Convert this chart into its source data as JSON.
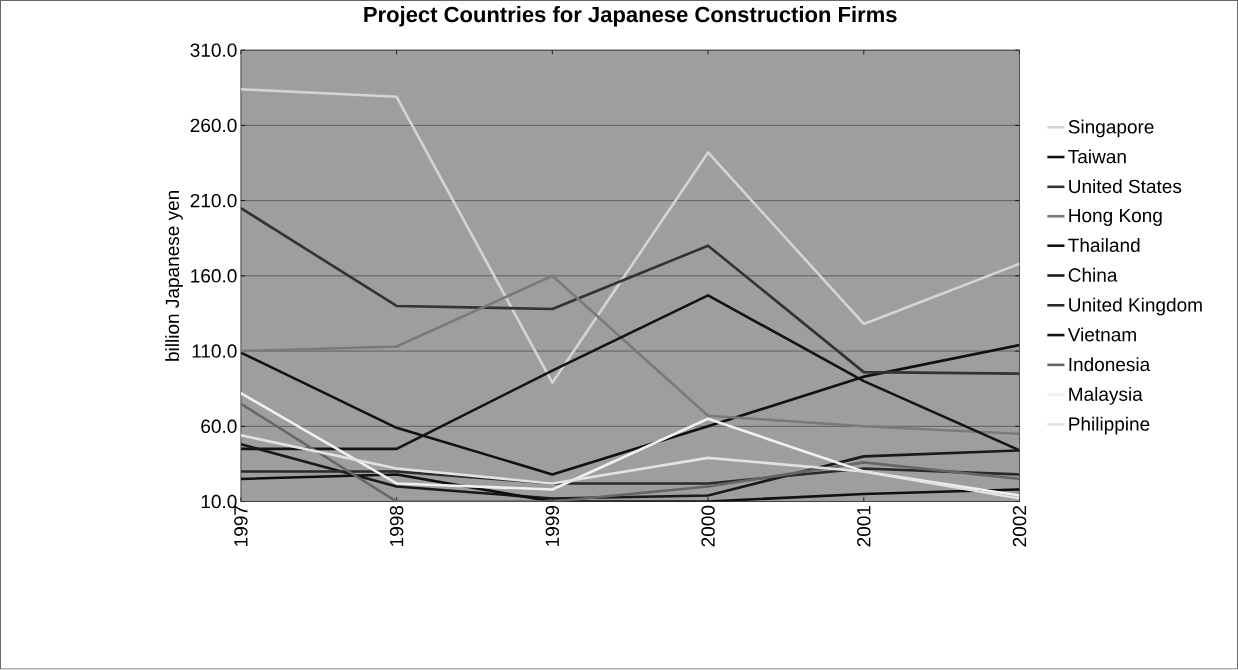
{
  "chart_data": {
    "type": "line",
    "title": "Project Countries for Japanese Construction Firms",
    "ylabel": "billion Japanese yen",
    "categories": [
      "1997",
      "1998",
      "1999",
      "2000",
      "2001",
      "2002"
    ],
    "ylim": [
      10,
      310
    ],
    "yticks": [
      {
        "value": 10,
        "label": "10.0"
      },
      {
        "value": 60,
        "label": "60.0"
      },
      {
        "value": 110,
        "label": "110.0"
      },
      {
        "value": 160,
        "label": "160.0"
      },
      {
        "value": 210,
        "label": "210.0"
      },
      {
        "value": 260,
        "label": "260.0"
      },
      {
        "value": 310,
        "label": "310.0"
      }
    ],
    "grid": "y",
    "legend": "right",
    "marker": "none",
    "series": [
      {
        "name": "Singapore",
        "color": "#d4d4d4",
        "values": [
          284,
          279,
          89,
          242,
          128,
          168
        ]
      },
      {
        "name": "Taiwan",
        "color": "#111111",
        "values": [
          109,
          59,
          28,
          60,
          93,
          114
        ]
      },
      {
        "name": "United States",
        "color": "#333333",
        "values": [
          205,
          140,
          138,
          180,
          96,
          95
        ]
      },
      {
        "name": "Hong Kong",
        "color": "#7a7a7a",
        "values": [
          110,
          113,
          160,
          67,
          60,
          55
        ]
      },
      {
        "name": "Thailand",
        "color": "#141414",
        "values": [
          45,
          45,
          97,
          147,
          90,
          44
        ]
      },
      {
        "name": "China",
        "color": "#1a1a1a",
        "values": [
          48,
          20,
          12,
          14,
          40,
          44
        ]
      },
      {
        "name": "United Kingdom",
        "color": "#2a2a2a",
        "values": [
          30,
          30,
          22,
          22,
          32,
          28
        ]
      },
      {
        "name": "Vietnam",
        "color": "#101010",
        "values": [
          25,
          28,
          10,
          10,
          15,
          18
        ]
      },
      {
        "name": "Indonesia",
        "color": "#666666",
        "values": [
          75,
          10,
          10,
          20,
          36,
          25
        ]
      },
      {
        "name": "Malaysia",
        "color": "#f0f0f0",
        "values": [
          82,
          22,
          18,
          65,
          30,
          14
        ]
      },
      {
        "name": "Philippine",
        "color": "#e2e2e2",
        "values": [
          54,
          32,
          22,
          39,
          30,
          12
        ]
      }
    ]
  }
}
